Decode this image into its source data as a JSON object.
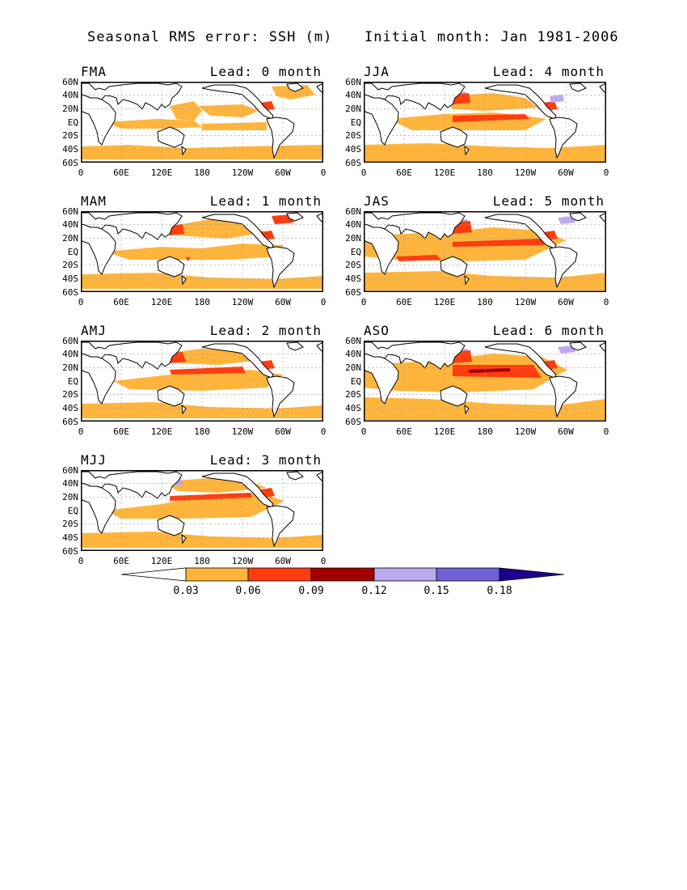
{
  "header": {
    "title": "Seasonal RMS error: SSH (m)",
    "subtitle": "Initial month: Jan 1981-2006"
  },
  "axes": {
    "lat_labels": [
      "60N",
      "40N",
      "20N",
      "EQ",
      "20S",
      "40S",
      "60S"
    ],
    "lon_labels": [
      "0",
      "60E",
      "120E",
      "180",
      "120W",
      "60W",
      "0"
    ]
  },
  "panels": [
    {
      "season": "FMA",
      "lead": "Lead: 0 month"
    },
    {
      "season": "JJA",
      "lead": "Lead: 4 month"
    },
    {
      "season": "MAM",
      "lead": "Lead: 1 month"
    },
    {
      "season": "JAS",
      "lead": "Lead: 5 month"
    },
    {
      "season": "AMJ",
      "lead": "Lead: 2 month"
    },
    {
      "season": "ASO",
      "lead": "Lead: 6 month"
    },
    {
      "season": "MJJ",
      "lead": "Lead: 3 month"
    }
  ],
  "colorbar": {
    "labels": [
      "0.03",
      "0.06",
      "0.09",
      "0.12",
      "0.15",
      "0.18"
    ],
    "colors": [
      "#ffffff",
      "#ffb43c",
      "#ff3c0f",
      "#a00000",
      "#bcaaf0",
      "#7060d8",
      "#1e0090"
    ]
  },
  "chart_data": {
    "type": "heatmap",
    "title": "Seasonal RMS error: SSH (m)",
    "subtitle": "Initial month: Jan 1981-2006",
    "x_ticks": [
      "0",
      "60E",
      "120E",
      "180",
      "120W",
      "60W",
      "0"
    ],
    "y_ticks": [
      "60N",
      "40N",
      "20N",
      "EQ",
      "20S",
      "40S",
      "60S"
    ],
    "xlim": [
      0,
      360
    ],
    "ylim": [
      -60,
      60
    ],
    "color_levels": [
      0.03,
      0.06,
      0.09,
      0.12,
      0.15,
      0.18
    ],
    "panels": [
      "FMA Lead: 0 month",
      "JJA Lead: 4 month",
      "MAM Lead: 1 month",
      "JAS Lead: 5 month",
      "AMJ Lead: 2 month",
      "ASO Lead: 6 month",
      "MJJ Lead: 3 month"
    ]
  }
}
